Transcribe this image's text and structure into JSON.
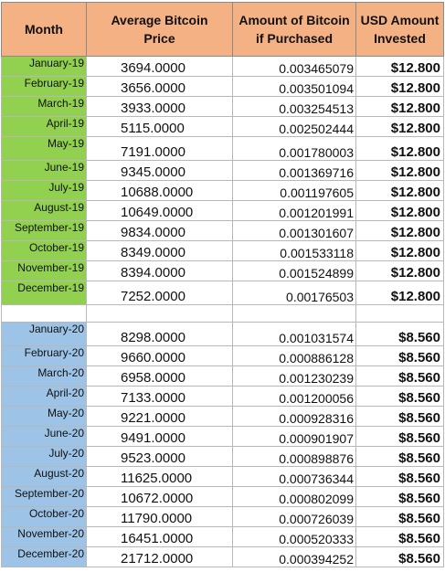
{
  "headers": {
    "month": "Month",
    "avg_price_1": "Average Bitcoin",
    "avg_price_2": "Price",
    "amount_1": "Amount of Bitcoin",
    "amount_2": "if Purchased",
    "usd_1": "USD Amount",
    "usd_2": "Invested"
  },
  "colors": {
    "header_bg": "#f4b183",
    "year_2019_bg": "#92d050",
    "year_2020_bg": "#9dc3e6"
  },
  "rows_2019": [
    {
      "month": "January-19",
      "price": "3694.0000",
      "btc": "0.003465079",
      "usd": "$12.800"
    },
    {
      "month": "February-19",
      "price": "3656.0000",
      "btc": "0.003501094",
      "usd": "$12.800"
    },
    {
      "month": "March-19",
      "price": "3933.0000",
      "btc": "0.003254513",
      "usd": "$12.800"
    },
    {
      "month": "April-19",
      "price": "5115.0000",
      "btc": "0.002502444",
      "usd": "$12.800"
    },
    {
      "month": "May-19",
      "price": "7191.0000",
      "btc": "0.001780003",
      "usd": "$12.800"
    },
    {
      "month": "June-19",
      "price": "9345.0000",
      "btc": "0.001369716",
      "usd": "$12.800"
    },
    {
      "month": "July-19",
      "price": "10688.0000",
      "btc": "0.001197605",
      "usd": "$12.800"
    },
    {
      "month": "August-19",
      "price": "10649.0000",
      "btc": "0.001201991",
      "usd": "$12.800"
    },
    {
      "month": "September-19",
      "price": "9834.0000",
      "btc": "0.001301607",
      "usd": "$12.800"
    },
    {
      "month": "October-19",
      "price": "8349.0000",
      "btc": "0.001533118",
      "usd": "$12.800"
    },
    {
      "month": "November-19",
      "price": "8394.0000",
      "btc": "0.001524899",
      "usd": "$12.800"
    },
    {
      "month": "December-19",
      "price": "7252.0000",
      "btc": "0.00176503",
      "usd": "$12.800"
    }
  ],
  "rows_2020": [
    {
      "month": "January-20",
      "price": "8298.0000",
      "btc": "0.001031574",
      "usd": "$8.560"
    },
    {
      "month": "February-20",
      "price": "9660.0000",
      "btc": "0.000886128",
      "usd": "$8.560"
    },
    {
      "month": "March-20",
      "price": "6958.0000",
      "btc": "0.001230239",
      "usd": "$8.560"
    },
    {
      "month": "April-20",
      "price": "7133.0000",
      "btc": "0.001200056",
      "usd": "$8.560"
    },
    {
      "month": "May-20",
      "price": "9221.0000",
      "btc": "0.000928316",
      "usd": "$8.560"
    },
    {
      "month": "June-20",
      "price": "9491.0000",
      "btc": "0.000901907",
      "usd": "$8.560"
    },
    {
      "month": "July-20",
      "price": "9523.0000",
      "btc": "0.000898876",
      "usd": "$8.560"
    },
    {
      "month": "August-20",
      "price": "11625.0000",
      "btc": "0.000736344",
      "usd": "$8.560"
    },
    {
      "month": "September-20",
      "price": "10672.0000",
      "btc": "0.000802099",
      "usd": "$8.560"
    },
    {
      "month": "October-20",
      "price": "11790.0000",
      "btc": "0.000726039",
      "usd": "$8.560"
    },
    {
      "month": "November-20",
      "price": "16451.0000",
      "btc": "0.000520333",
      "usd": "$8.560"
    },
    {
      "month": "December-20",
      "price": "21712.0000",
      "btc": "0.000394252",
      "usd": "$8.560"
    }
  ]
}
